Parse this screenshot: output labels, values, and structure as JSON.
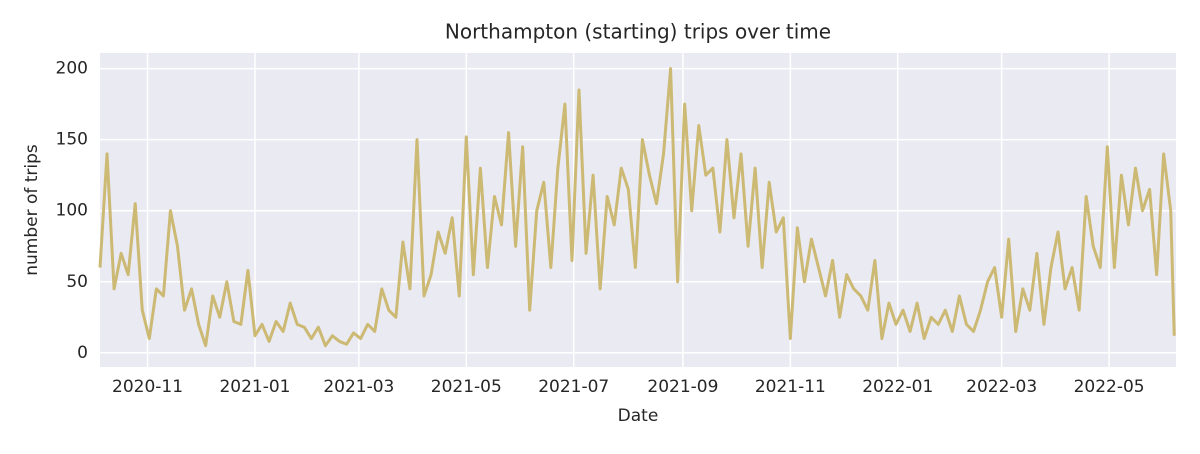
{
  "chart_data": {
    "type": "line",
    "title": "Northampton (starting) trips over time",
    "x_label": "Date",
    "y_label": "number of trips",
    "color": "#ccb974",
    "grid": true,
    "xlim": [
      "2020-10-05",
      "2022-06-08"
    ],
    "ylim": [
      -10,
      211
    ],
    "xticks": [
      "2020-11",
      "2021-01",
      "2021-03",
      "2021-05",
      "2021-07",
      "2021-09",
      "2021-11",
      "2022-01",
      "2022-03",
      "2022-05"
    ],
    "yticks": [
      0,
      50,
      100,
      150,
      200
    ],
    "x": [
      "2020-10-05",
      "2020-10-09",
      "2020-10-13",
      "2020-10-17",
      "2020-10-21",
      "2020-10-25",
      "2020-10-29",
      "2020-11-02",
      "2020-11-06",
      "2020-11-10",
      "2020-11-14",
      "2020-11-18",
      "2020-11-22",
      "2020-11-26",
      "2020-11-30",
      "2020-12-04",
      "2020-12-08",
      "2020-12-12",
      "2020-12-16",
      "2020-12-20",
      "2020-12-24",
      "2020-12-28",
      "2021-01-01",
      "2021-01-05",
      "2021-01-09",
      "2021-01-13",
      "2021-01-17",
      "2021-01-21",
      "2021-01-25",
      "2021-01-29",
      "2021-02-02",
      "2021-02-06",
      "2021-02-10",
      "2021-02-14",
      "2021-02-18",
      "2021-02-22",
      "2021-02-26",
      "2021-03-02",
      "2021-03-06",
      "2021-03-10",
      "2021-03-14",
      "2021-03-18",
      "2021-03-22",
      "2021-03-26",
      "2021-03-30",
      "2021-04-03",
      "2021-04-07",
      "2021-04-11",
      "2021-04-15",
      "2021-04-19",
      "2021-04-23",
      "2021-04-27",
      "2021-05-01",
      "2021-05-05",
      "2021-05-09",
      "2021-05-13",
      "2021-05-17",
      "2021-05-21",
      "2021-05-25",
      "2021-05-29",
      "2021-06-02",
      "2021-06-06",
      "2021-06-10",
      "2021-06-14",
      "2021-06-18",
      "2021-06-22",
      "2021-06-26",
      "2021-06-30",
      "2021-07-04",
      "2021-07-08",
      "2021-07-12",
      "2021-07-16",
      "2021-07-20",
      "2021-07-24",
      "2021-07-28",
      "2021-08-01",
      "2021-08-05",
      "2021-08-09",
      "2021-08-13",
      "2021-08-17",
      "2021-08-21",
      "2021-08-25",
      "2021-08-29",
      "2021-09-02",
      "2021-09-06",
      "2021-09-10",
      "2021-09-14",
      "2021-09-18",
      "2021-09-22",
      "2021-09-26",
      "2021-09-30",
      "2021-10-04",
      "2021-10-08",
      "2021-10-12",
      "2021-10-16",
      "2021-10-20",
      "2021-10-24",
      "2021-10-28",
      "2021-11-01",
      "2021-11-05",
      "2021-11-09",
      "2021-11-13",
      "2021-11-17",
      "2021-11-21",
      "2021-11-25",
      "2021-11-29",
      "2021-12-03",
      "2021-12-07",
      "2021-12-11",
      "2021-12-15",
      "2021-12-19",
      "2021-12-23",
      "2021-12-27",
      "2021-12-31",
      "2022-01-04",
      "2022-01-08",
      "2022-01-12",
      "2022-01-16",
      "2022-01-20",
      "2022-01-24",
      "2022-01-28",
      "2022-02-01",
      "2022-02-05",
      "2022-02-09",
      "2022-02-13",
      "2022-02-17",
      "2022-02-21",
      "2022-02-25",
      "2022-03-01",
      "2022-03-05",
      "2022-03-09",
      "2022-03-13",
      "2022-03-17",
      "2022-03-21",
      "2022-03-25",
      "2022-03-29",
      "2022-04-02",
      "2022-04-06",
      "2022-04-10",
      "2022-04-14",
      "2022-04-18",
      "2022-04-22",
      "2022-04-26",
      "2022-04-30",
      "2022-05-04",
      "2022-05-08",
      "2022-05-12",
      "2022-05-16",
      "2022-05-20",
      "2022-05-24",
      "2022-05-28",
      "2022-06-01",
      "2022-06-05",
      "2022-06-07"
    ],
    "values": [
      60,
      140,
      45,
      70,
      55,
      105,
      30,
      10,
      45,
      40,
      100,
      75,
      30,
      45,
      20,
      5,
      40,
      25,
      50,
      22,
      20,
      58,
      12,
      20,
      8,
      22,
      15,
      35,
      20,
      18,
      10,
      18,
      5,
      12,
      8,
      6,
      14,
      10,
      20,
      15,
      45,
      30,
      25,
      78,
      45,
      150,
      40,
      55,
      85,
      70,
      95,
      40,
      152,
      55,
      130,
      60,
      110,
      90,
      155,
      75,
      145,
      30,
      100,
      120,
      60,
      130,
      175,
      65,
      185,
      70,
      125,
      45,
      110,
      90,
      130,
      115,
      60,
      150,
      125,
      105,
      140,
      200,
      50,
      175,
      100,
      160,
      125,
      130,
      85,
      150,
      95,
      140,
      75,
      130,
      60,
      120,
      85,
      95,
      10,
      88,
      50,
      80,
      60,
      40,
      65,
      25,
      55,
      45,
      40,
      30,
      65,
      10,
      35,
      20,
      30,
      15,
      35,
      10,
      25,
      20,
      30,
      15,
      40,
      20,
      15,
      30,
      50,
      60,
      25,
      80,
      15,
      45,
      30,
      70,
      20,
      60,
      85,
      45,
      60,
      30,
      110,
      75,
      60,
      145,
      60,
      125,
      90,
      130,
      100,
      115,
      55,
      140,
      100,
      12
    ]
  }
}
